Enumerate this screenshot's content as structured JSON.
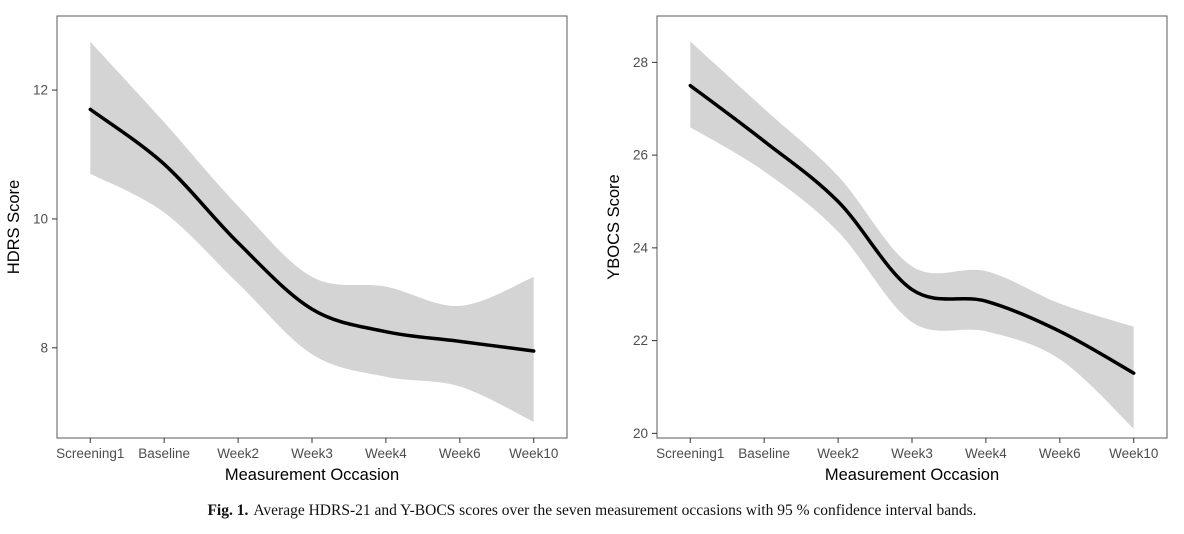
{
  "caption": {
    "label": "Fig. 1.",
    "text": "Average HDRS-21 and Y-BOCS scores over the seven measurement occasions with 95 % confidence interval bands."
  },
  "colors": {
    "line": "#000000",
    "band": "#d4d4d4",
    "panel_border": "#595959",
    "tick": "#333333",
    "tick_label": "#4d4d4d",
    "axis_title": "#000000",
    "background": "#ffffff"
  },
  "chart_data": [
    {
      "type": "line",
      "xlabel": "Measurement Occasion",
      "ylabel": "HDRS Score",
      "categories": [
        "Screening1",
        "Baseline",
        "Week2",
        "Week3",
        "Week4",
        "Week6",
        "Week10"
      ],
      "series": [
        {
          "name": "Average HDRS-21 score",
          "values": [
            11.7,
            10.85,
            9.63,
            8.6,
            8.25,
            8.1,
            7.95
          ]
        }
      ],
      "band": {
        "name": "95 % confidence interval",
        "upper": [
          12.75,
          11.5,
          10.2,
          9.1,
          8.95,
          8.65,
          9.1
        ],
        "lower": [
          10.7,
          10.1,
          9.0,
          7.9,
          7.55,
          7.4,
          6.85
        ]
      },
      "ylim": [
        6.6,
        13.15
      ],
      "yticks": [
        8,
        10,
        12
      ],
      "grid": false,
      "legend": "none"
    },
    {
      "type": "line",
      "xlabel": "Measurement Occasion",
      "ylabel": "YBOCS Score",
      "categories": [
        "Screening1",
        "Baseline",
        "Week2",
        "Week3",
        "Week4",
        "Week6",
        "Week10"
      ],
      "series": [
        {
          "name": "Average Y-BOCS score",
          "values": [
            27.5,
            26.3,
            25.0,
            23.1,
            22.85,
            22.2,
            21.3
          ]
        }
      ],
      "band": {
        "name": "95 % confidence interval",
        "upper": [
          28.45,
          27.0,
          25.55,
          23.6,
          23.5,
          22.8,
          22.3
        ],
        "lower": [
          26.6,
          25.65,
          24.35,
          22.4,
          22.2,
          21.6,
          20.1
        ]
      },
      "ylim": [
        19.9,
        29.0
      ],
      "yticks": [
        20,
        22,
        24,
        26,
        28
      ],
      "grid": false,
      "legend": "none"
    }
  ]
}
